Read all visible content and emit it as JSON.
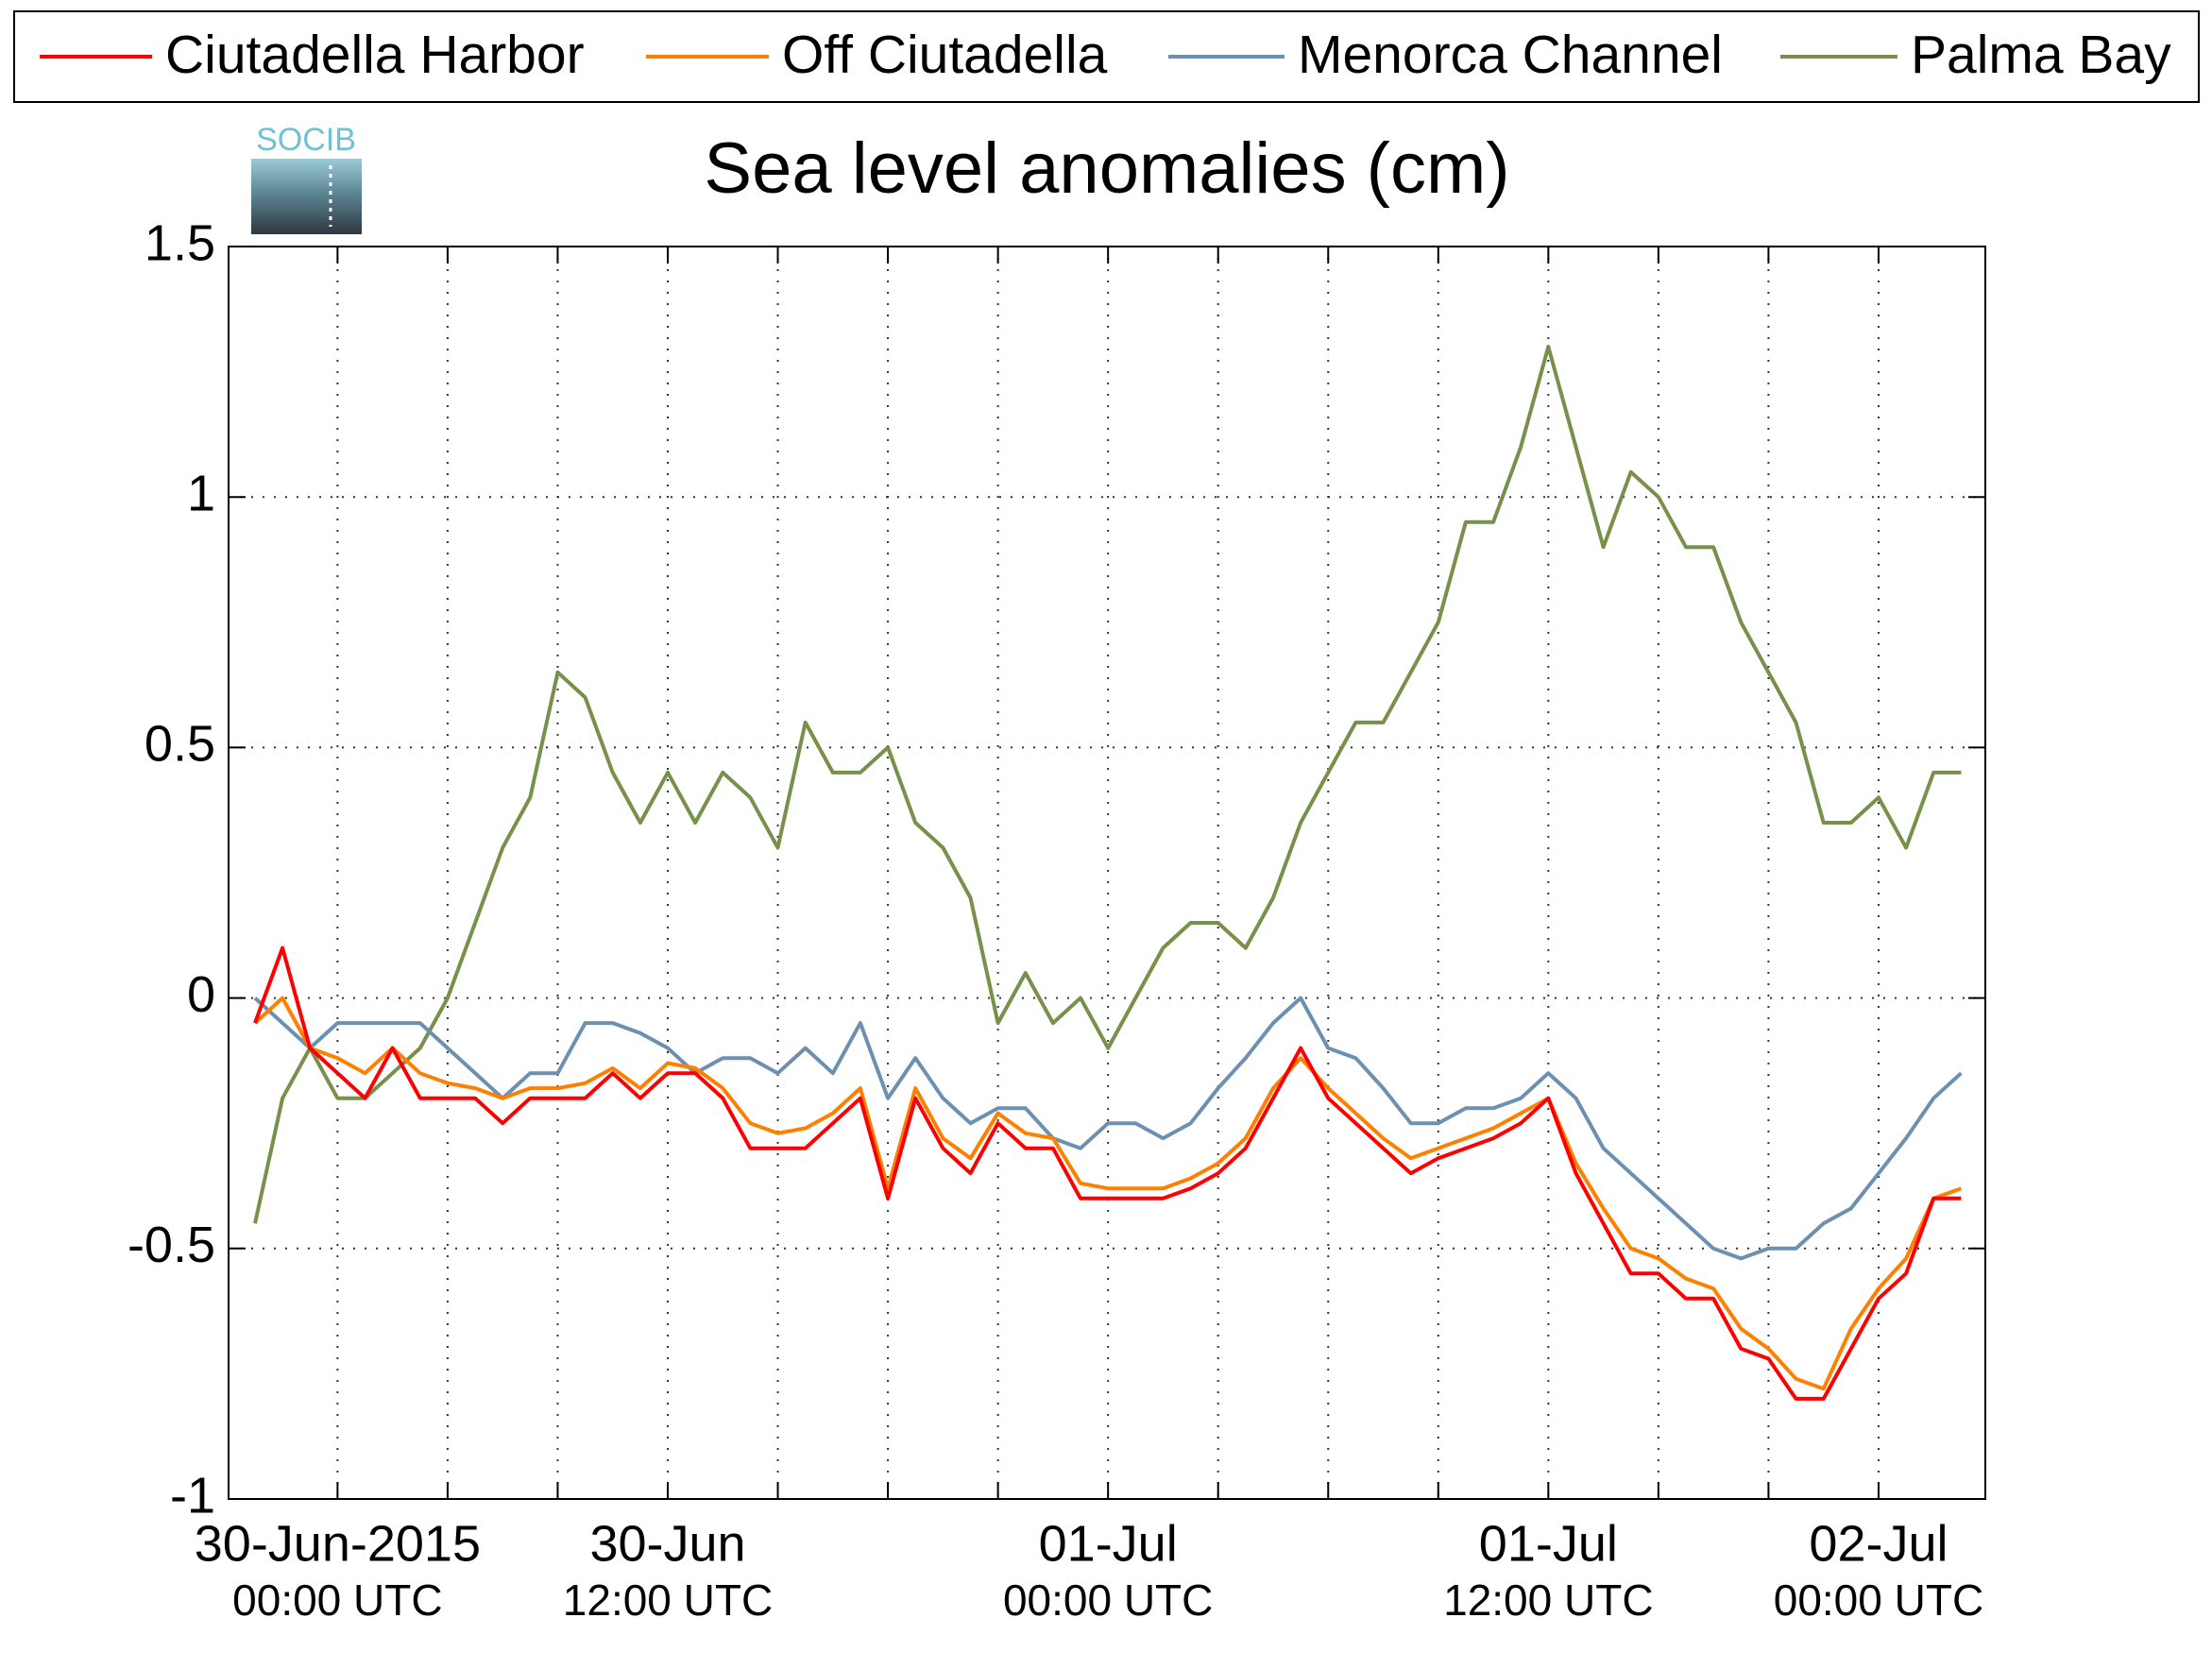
{
  "chart_data": {
    "type": "line",
    "title": "Sea level anomalies (cm)",
    "logo_text": "SOCIB",
    "x": [
      -0.75,
      -0.5,
      -0.25,
      0,
      0.25,
      0.5,
      0.75,
      1,
      1.25,
      1.5,
      1.75,
      2,
      2.25,
      2.5,
      2.75,
      3,
      3.25,
      3.5,
      3.75,
      4,
      4.25,
      4.5,
      4.75,
      5,
      5.25,
      5.5,
      5.75,
      6,
      6.25,
      6.5,
      6.75,
      7,
      7.25,
      7.5,
      7.75,
      8,
      8.25,
      8.5,
      8.75,
      9,
      9.25,
      9.5,
      9.75,
      10,
      10.25,
      10.5,
      10.75,
      11,
      11.25,
      11.5,
      11.75,
      12,
      12.25,
      12.5,
      12.75,
      13,
      13.25,
      13.5,
      13.75,
      14,
      14.25,
      14.5,
      14.75
    ],
    "series": [
      {
        "name": "Ciutadella Harbor",
        "color": "#ff0000",
        "values": [
          -0.05,
          0.1,
          -0.1,
          -0.15,
          -0.2,
          -0.1,
          -0.2,
          -0.2,
          -0.2,
          -0.25,
          -0.2,
          -0.2,
          -0.2,
          -0.15,
          -0.2,
          -0.15,
          -0.15,
          -0.2,
          -0.3,
          -0.3,
          -0.3,
          -0.25,
          -0.2,
          -0.4,
          -0.2,
          -0.3,
          -0.35,
          -0.25,
          -0.3,
          -0.3,
          -0.4,
          -0.4,
          -0.4,
          -0.4,
          -0.38,
          -0.35,
          -0.3,
          -0.2,
          -0.1,
          -0.2,
          -0.25,
          -0.3,
          -0.35,
          -0.32,
          -0.3,
          -0.28,
          -0.25,
          -0.2,
          -0.35,
          -0.45,
          -0.55,
          -0.55,
          -0.6,
          -0.6,
          -0.7,
          -0.72,
          -0.8,
          -0.8,
          -0.7,
          -0.6,
          -0.55,
          -0.4,
          -0.4
        ]
      },
      {
        "name": "Off Ciutadella",
        "color": "#ff8000",
        "values": [
          -0.05,
          0.0,
          -0.1,
          -0.12,
          -0.15,
          -0.1,
          -0.15,
          -0.17,
          -0.18,
          -0.2,
          -0.18,
          -0.18,
          -0.17,
          -0.14,
          -0.18,
          -0.13,
          -0.14,
          -0.18,
          -0.25,
          -0.27,
          -0.26,
          -0.23,
          -0.18,
          -0.38,
          -0.18,
          -0.28,
          -0.32,
          -0.23,
          -0.27,
          -0.28,
          -0.37,
          -0.38,
          -0.38,
          -0.38,
          -0.36,
          -0.33,
          -0.28,
          -0.18,
          -0.12,
          -0.18,
          -0.23,
          -0.28,
          -0.32,
          -0.3,
          -0.28,
          -0.26,
          -0.23,
          -0.2,
          -0.33,
          -0.42,
          -0.5,
          -0.52,
          -0.56,
          -0.58,
          -0.66,
          -0.7,
          -0.76,
          -0.78,
          -0.66,
          -0.58,
          -0.52,
          -0.4,
          -0.38
        ]
      },
      {
        "name": "Menorca Channel",
        "color": "#6b90b2",
        "values": [
          0.0,
          -0.05,
          -0.1,
          -0.05,
          -0.05,
          -0.05,
          -0.05,
          -0.1,
          -0.15,
          -0.2,
          -0.15,
          -0.15,
          -0.05,
          -0.05,
          -0.07,
          -0.1,
          -0.15,
          -0.12,
          -0.12,
          -0.15,
          -0.1,
          -0.15,
          -0.05,
          -0.2,
          -0.12,
          -0.2,
          -0.25,
          -0.22,
          -0.22,
          -0.28,
          -0.3,
          -0.25,
          -0.25,
          -0.28,
          -0.25,
          -0.18,
          -0.12,
          -0.05,
          0.0,
          -0.1,
          -0.12,
          -0.18,
          -0.25,
          -0.25,
          -0.22,
          -0.22,
          -0.2,
          -0.15,
          -0.2,
          -0.3,
          -0.35,
          -0.4,
          -0.45,
          -0.5,
          -0.52,
          -0.5,
          -0.5,
          -0.45,
          -0.42,
          -0.35,
          -0.28,
          -0.2,
          -0.15
        ]
      },
      {
        "name": "Palma Bay",
        "color": "#77904a",
        "values": [
          -0.45,
          -0.2,
          -0.1,
          -0.2,
          -0.2,
          -0.15,
          -0.1,
          0.0,
          0.15,
          0.3,
          0.4,
          0.65,
          0.6,
          0.45,
          0.35,
          0.45,
          0.35,
          0.45,
          0.4,
          0.3,
          0.55,
          0.45,
          0.45,
          0.5,
          0.35,
          0.3,
          0.2,
          -0.05,
          0.05,
          -0.05,
          0.0,
          -0.1,
          0.0,
          0.1,
          0.15,
          0.15,
          0.1,
          0.2,
          0.35,
          0.45,
          0.55,
          0.55,
          0.65,
          0.75,
          0.95,
          0.95,
          1.1,
          1.3,
          1.1,
          0.9,
          1.05,
          1.0,
          0.9,
          0.9,
          0.75,
          0.65,
          0.55,
          0.35,
          0.35,
          0.4,
          0.3,
          0.45,
          0.45
        ]
      }
    ],
    "xlim": [
      -0.99,
      14.97
    ],
    "xticks": [
      {
        "value": 0,
        "label": [
          "30-Jun-2015",
          "00:00 UTC"
        ]
      },
      1,
      2,
      {
        "value": 3,
        "label": [
          "30-Jun",
          "12:00 UTC"
        ]
      },
      4,
      5,
      6,
      {
        "value": 7,
        "label": [
          "01-Jul",
          "00:00 UTC"
        ]
      },
      8,
      9,
      10,
      {
        "value": 11,
        "label": [
          "01-Jul",
          "12:00 UTC"
        ]
      },
      12,
      13,
      {
        "value": 14,
        "label": [
          "02-Jul",
          "00:00 UTC"
        ]
      }
    ],
    "ylim": [
      -1,
      1.5
    ],
    "yticks": [
      -1,
      -0.5,
      0,
      0.5,
      1,
      1.5
    ],
    "grid": true
  }
}
